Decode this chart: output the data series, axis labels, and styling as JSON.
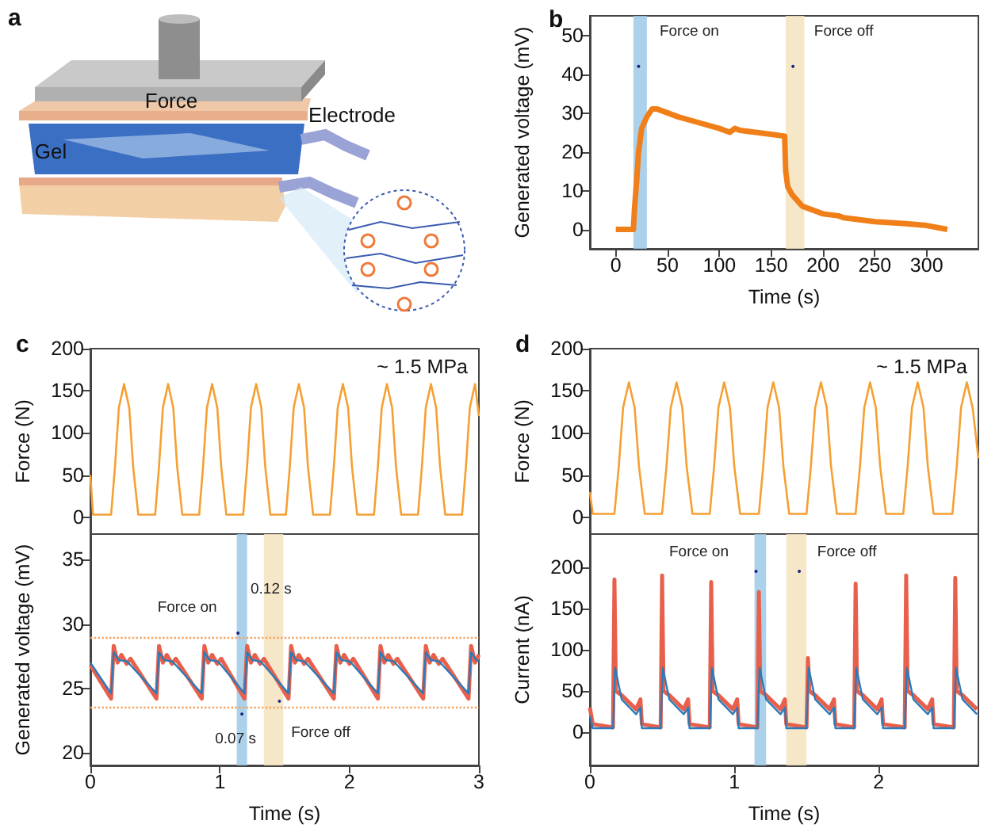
{
  "chart_data": [
    {
      "type": "other",
      "title": "a",
      "annotations": [
        "Force",
        "Electrode",
        "Gel"
      ]
    },
    {
      "type": "line",
      "title": "b",
      "xlabel": "Time (s)",
      "ylabel": "Generated voltage (mV)",
      "xlim": [
        -25,
        350
      ],
      "ylim": [
        -5,
        55
      ],
      "xticks": [
        0,
        50,
        100,
        150,
        200,
        250,
        300
      ],
      "yticks": [
        0,
        10,
        20,
        30,
        40,
        50
      ],
      "grid": false,
      "series": [
        {
          "color": "#f07f1a",
          "x": [
            0,
            17,
            18,
            20,
            22,
            25,
            30,
            35,
            40,
            60,
            80,
            100,
            110,
            115,
            120,
            150,
            163,
            164,
            166,
            170,
            180,
            190,
            200,
            215,
            220,
            250,
            280,
            300,
            320
          ],
          "values": [
            0,
            0,
            5,
            12,
            20,
            26,
            29,
            31,
            31,
            29,
            27.5,
            26,
            25,
            26,
            25.5,
            24.5,
            24,
            15,
            11,
            9,
            6,
            5,
            4,
            3.5,
            3,
            2,
            1.5,
            1,
            0
          ]
        }
      ],
      "bands": [
        {
          "axis": "x",
          "from": 17,
          "to": 30,
          "color": "#9ec9e8"
        },
        {
          "axis": "x",
          "from": 164,
          "to": 182,
          "color": "#f5e3c0"
        }
      ],
      "annotations": [
        {
          "text": "Force on",
          "x": 22,
          "y": 42
        },
        {
          "text": "Force off",
          "x": 171,
          "y": 42
        }
      ]
    },
    {
      "type": "line",
      "title": "c",
      "ylabel": "Force (N)",
      "xlim": [
        0,
        3
      ],
      "ylim": [
        -20,
        200
      ],
      "xticks": [
        0,
        1,
        2,
        3
      ],
      "yticks": [
        0,
        50,
        100,
        150,
        200
      ],
      "tick_labels": "y",
      "grid": false,
      "series": [
        {
          "color": "#f5a033",
          "x": [
            0,
            0.02,
            0.16,
            0.19,
            0.22,
            0.26,
            0.3,
            0.33,
            0.37,
            0.5,
            0.53,
            0.56,
            0.6,
            0.64,
            0.67,
            0.71,
            0.84,
            0.87,
            0.9,
            0.94,
            0.98,
            1.01,
            1.05,
            1.18,
            1.21,
            1.24,
            1.28,
            1.32,
            1.35,
            1.39,
            1.51,
            1.54,
            1.57,
            1.61,
            1.65,
            1.68,
            1.72,
            1.85,
            1.88,
            1.91,
            1.95,
            1.99,
            2.02,
            2.06,
            2.19,
            2.22,
            2.25,
            2.29,
            2.33,
            2.36,
            2.4,
            2.53,
            2.56,
            2.59,
            2.63,
            2.67,
            2.7,
            2.74,
            2.87,
            2.9,
            2.93,
            2.97,
            3.0
          ],
          "values": [
            50,
            3,
            3,
            60,
            130,
            158,
            130,
            60,
            3,
            3,
            60,
            130,
            158,
            130,
            60,
            3,
            3,
            60,
            130,
            158,
            130,
            60,
            3,
            3,
            60,
            130,
            158,
            130,
            60,
            3,
            3,
            60,
            130,
            158,
            130,
            60,
            3,
            3,
            60,
            130,
            158,
            130,
            60,
            3,
            3,
            60,
            130,
            158,
            130,
            60,
            3,
            3,
            60,
            130,
            158,
            130,
            60,
            3,
            3,
            60,
            130,
            158,
            120
          ]
        }
      ],
      "annotations": [
        "~ 1.5 MPa"
      ]
    },
    {
      "type": "line",
      "xlabel": "Time (s)",
      "ylabel": "Generated voltage (mV)",
      "xlim": [
        0,
        3
      ],
      "ylim": [
        19,
        37
      ],
      "xticks": [
        0,
        1,
        2,
        3
      ],
      "yticks": [
        20,
        25,
        30,
        35
      ],
      "grid": false,
      "series": [
        {
          "color": "#e8604c",
          "x": [
            0,
            0.16,
            0.18,
            0.21,
            0.24,
            0.28,
            0.31,
            0.51,
            0.53,
            0.56,
            0.59,
            0.63,
            0.66,
            0.86,
            0.88,
            0.91,
            0.94,
            0.98,
            1.01,
            1.19,
            1.21,
            1.24,
            1.27,
            1.31,
            1.34,
            1.53,
            1.55,
            1.58,
            1.61,
            1.65,
            1.68,
            1.88,
            1.9,
            1.93,
            1.96,
            2.0,
            2.03,
            2.22,
            2.24,
            2.27,
            2.3,
            2.34,
            2.37,
            2.57,
            2.59,
            2.62,
            2.65,
            2.69,
            2.72,
            2.92,
            2.94,
            2.97,
            3.0
          ],
          "values": [
            26.8,
            24.2,
            28.3,
            27.0,
            27.6,
            26.9,
            27.3,
            24.2,
            28.3,
            27.0,
            27.6,
            26.9,
            27.3,
            24.2,
            28.3,
            27.0,
            27.6,
            26.9,
            27.3,
            24.2,
            28.3,
            27.0,
            27.6,
            26.9,
            27.3,
            24.2,
            28.3,
            27.0,
            27.6,
            26.9,
            27.3,
            24.2,
            28.3,
            27.0,
            27.6,
            26.9,
            27.3,
            24.2,
            28.3,
            27.0,
            27.6,
            26.9,
            27.3,
            24.2,
            28.3,
            27.0,
            27.6,
            26.9,
            27.3,
            24.2,
            28.3,
            27.0,
            27.6
          ]
        },
        {
          "color": "#2b7bba",
          "x": [
            0,
            0.16,
            0.18,
            0.22,
            0.28,
            0.31,
            0.51,
            0.53,
            0.57,
            0.63,
            0.66,
            0.86,
            0.88,
            0.92,
            0.98,
            1.01,
            1.19,
            1.21,
            1.25,
            1.31,
            1.34,
            1.53,
            1.55,
            1.59,
            1.65,
            1.68,
            1.88,
            1.9,
            1.94,
            2.0,
            2.03,
            2.22,
            2.24,
            2.28,
            2.34,
            2.37,
            2.57,
            2.59,
            2.63,
            2.69,
            2.72,
            2.92,
            2.94,
            2.98,
            3.0
          ],
          "values": [
            27.0,
            24.6,
            27.8,
            27.2,
            27.1,
            26.8,
            24.6,
            27.8,
            27.2,
            27.1,
            26.8,
            24.6,
            27.8,
            27.2,
            27.1,
            26.8,
            24.6,
            27.8,
            27.2,
            27.1,
            26.8,
            24.6,
            27.8,
            27.2,
            27.1,
            26.8,
            24.6,
            27.8,
            27.2,
            27.1,
            26.8,
            24.6,
            27.8,
            27.2,
            27.1,
            26.8,
            24.6,
            27.8,
            27.2,
            27.1,
            26.8,
            24.6,
            27.8,
            27.2,
            27.1
          ]
        }
      ],
      "ref_lines": [
        {
          "axis": "y",
          "value": 29,
          "color": "#f4a460",
          "line_style": "dotted"
        },
        {
          "axis": "y",
          "value": 23.5,
          "color": "#f4a460",
          "line_style": "dotted"
        }
      ],
      "bands": [
        {
          "axis": "x",
          "from": 1.13,
          "to": 1.21,
          "color": "#9ec9e8"
        },
        {
          "axis": "x",
          "from": 1.34,
          "to": 1.49,
          "color": "#f5e3c0"
        }
      ],
      "annotations": [
        {
          "text": "Force on",
          "x": 1.14,
          "y": 29.3
        },
        "0.12 s",
        {
          "text": "0.07 s",
          "x": 1.17,
          "y": 23
        },
        {
          "text": "Force off",
          "x": 1.46,
          "y": 24
        }
      ]
    },
    {
      "type": "line",
      "title": "d",
      "ylabel": "Force (N)",
      "xlim": [
        0,
        2.69
      ],
      "ylim": [
        -20,
        200
      ],
      "xticks": [
        0,
        1,
        2
      ],
      "yticks": [
        0,
        50,
        100,
        150,
        200
      ],
      "tick_labels": "y",
      "grid": false,
      "series": [
        {
          "color": "#f5a033",
          "x": [
            0,
            0.02,
            0.17,
            0.2,
            0.23,
            0.27,
            0.31,
            0.34,
            0.38,
            0.5,
            0.53,
            0.56,
            0.6,
            0.64,
            0.67,
            0.71,
            0.83,
            0.86,
            0.89,
            0.93,
            0.97,
            1.0,
            1.04,
            1.17,
            1.2,
            1.23,
            1.27,
            1.31,
            1.34,
            1.38,
            1.5,
            1.53,
            1.56,
            1.6,
            1.64,
            1.67,
            1.71,
            1.84,
            1.87,
            1.9,
            1.94,
            1.98,
            2.01,
            2.05,
            2.17,
            2.2,
            2.23,
            2.27,
            2.31,
            2.34,
            2.38,
            2.51,
            2.54,
            2.57,
            2.61,
            2.65,
            2.69
          ],
          "values": [
            30,
            4,
            4,
            60,
            130,
            160,
            130,
            60,
            4,
            4,
            60,
            130,
            160,
            130,
            60,
            4,
            4,
            60,
            130,
            160,
            130,
            60,
            4,
            4,
            60,
            130,
            160,
            130,
            60,
            4,
            4,
            60,
            130,
            160,
            130,
            60,
            4,
            4,
            60,
            130,
            160,
            130,
            60,
            4,
            4,
            60,
            130,
            160,
            130,
            60,
            4,
            4,
            60,
            130,
            160,
            130,
            70
          ]
        }
      ],
      "annotations": [
        "~ 1.5 MPa"
      ]
    },
    {
      "type": "line",
      "xlabel": "Time (s)",
      "ylabel": "Current (nA)",
      "xlim": [
        0,
        2.69
      ],
      "ylim": [
        -40,
        240
      ],
      "xticks": [
        0,
        1,
        2
      ],
      "yticks": [
        0,
        50,
        100,
        150,
        200
      ],
      "grid": false,
      "series": [
        {
          "color": "#e8604c",
          "x": [
            0,
            0.02,
            0.16,
            0.17,
            0.18,
            0.22,
            0.32,
            0.35,
            0.36,
            0.49,
            0.5,
            0.51,
            0.55,
            0.65,
            0.68,
            0.69,
            0.83,
            0.84,
            0.85,
            0.89,
            0.99,
            1.02,
            1.03,
            1.16,
            1.17,
            1.18,
            1.22,
            1.32,
            1.35,
            1.36,
            1.5,
            1.51,
            1.52,
            1.56,
            1.66,
            1.69,
            1.7,
            1.83,
            1.84,
            1.85,
            1.89,
            1.99,
            2.02,
            2.03,
            2.18,
            2.19,
            2.2,
            2.24,
            2.34,
            2.37,
            2.38,
            2.52,
            2.53,
            2.54,
            2.58,
            2.68
          ],
          "values": [
            30,
            10,
            6,
            185,
            50,
            45,
            28,
            40,
            10,
            6,
            190,
            50,
            45,
            28,
            40,
            10,
            6,
            182,
            50,
            45,
            28,
            40,
            10,
            6,
            170,
            50,
            45,
            28,
            40,
            10,
            6,
            90,
            50,
            45,
            28,
            40,
            10,
            6,
            180,
            50,
            45,
            28,
            40,
            10,
            6,
            190,
            50,
            45,
            28,
            40,
            10,
            6,
            187,
            50,
            45,
            28
          ]
        },
        {
          "color": "#2b7bba",
          "x": [
            0,
            0.02,
            0.16,
            0.175,
            0.22,
            0.32,
            0.35,
            0.36,
            0.49,
            0.505,
            0.55,
            0.65,
            0.68,
            0.69,
            0.83,
            0.845,
            0.89,
            0.99,
            1.02,
            1.03,
            1.16,
            1.175,
            1.22,
            1.32,
            1.35,
            1.36,
            1.5,
            1.515,
            1.56,
            1.66,
            1.69,
            1.7,
            1.83,
            1.845,
            1.89,
            1.99,
            2.02,
            2.03,
            2.18,
            2.195,
            2.24,
            2.34,
            2.37,
            2.38,
            2.52,
            2.535,
            2.58,
            2.68
          ],
          "values": [
            20,
            5,
            5,
            78,
            40,
            22,
            30,
            5,
            5,
            78,
            40,
            22,
            30,
            5,
            5,
            78,
            40,
            22,
            30,
            5,
            5,
            78,
            40,
            22,
            30,
            5,
            5,
            78,
            40,
            22,
            30,
            5,
            5,
            78,
            40,
            22,
            30,
            5,
            5,
            78,
            40,
            22,
            30,
            5,
            5,
            78,
            40,
            22
          ]
        }
      ],
      "bands": [
        {
          "axis": "x",
          "from": 1.14,
          "to": 1.22,
          "color": "#9ec9e8"
        },
        {
          "axis": "x",
          "from": 1.36,
          "to": 1.5,
          "color": "#f5e3c0"
        }
      ],
      "annotations": [
        {
          "text": "Force on",
          "x": 1.15,
          "y": 195
        },
        {
          "text": "Force off",
          "x": 1.45,
          "y": 195
        }
      ]
    }
  ]
}
